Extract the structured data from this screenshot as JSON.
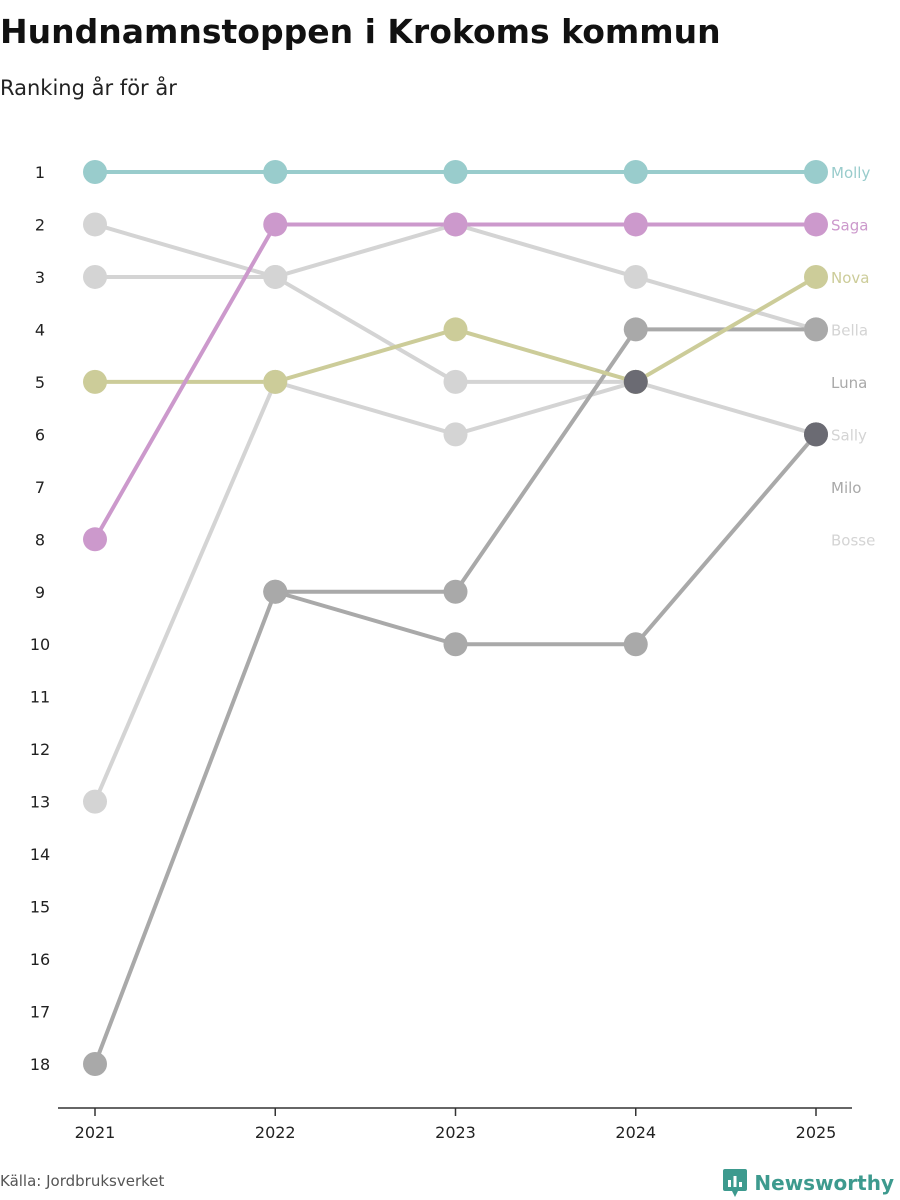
{
  "chart_data": {
    "type": "line",
    "subtype": "bump",
    "title": "Hundnamnstoppen i Krokoms kommun",
    "subtitle": "Ranking år för år",
    "xlabel": "",
    "ylabel": "",
    "x": [
      "2021",
      "2022",
      "2023",
      "2024",
      "2025"
    ],
    "ylim": [
      1,
      18
    ],
    "y_ticks": [
      1,
      2,
      3,
      4,
      5,
      6,
      7,
      8,
      9,
      10,
      11,
      12,
      13,
      14,
      15,
      16,
      17,
      18
    ],
    "y_inverted": true,
    "series": [
      {
        "name": "Bosse",
        "color": "#d4d4d4",
        "values": [
          3,
          3,
          2,
          3,
          4
        ]
      },
      {
        "name": "Sally",
        "color": "#d4d4d4",
        "values": [
          2,
          3,
          5,
          5,
          6
        ]
      },
      {
        "name": "Luna",
        "color": "#d4d4d4",
        "values": [
          13,
          5,
          6,
          5,
          null
        ]
      },
      {
        "name": "Bella",
        "color": "#a9a9a9",
        "values": [
          18,
          9,
          9,
          4,
          4
        ]
      },
      {
        "name": "Milo",
        "color": "#a9a9a9",
        "values": [
          null,
          9,
          10,
          10,
          6
        ]
      },
      {
        "name": "Nova",
        "color": "#cccc99",
        "values": [
          5,
          5,
          4,
          5,
          3
        ]
      },
      {
        "name": "Saga",
        "color": "#cc99cc",
        "values": [
          8,
          2,
          2,
          2,
          2
        ]
      },
      {
        "name": "Molly",
        "color": "#99cccc",
        "values": [
          1,
          1,
          1,
          1,
          1
        ]
      }
    ],
    "labels": [
      {
        "name": "Molly",
        "rank": 1,
        "color": "#99cccc"
      },
      {
        "name": "Saga",
        "rank": 2,
        "color": "#cc99cc"
      },
      {
        "name": "Nova",
        "rank": 3,
        "color": "#cccc99"
      },
      {
        "name": "Bella",
        "rank": 4,
        "color": "#d4d4d4"
      },
      {
        "name": "Luna",
        "rank": 5,
        "color": "#a9a9a9"
      },
      {
        "name": "Sally",
        "rank": 6,
        "color": "#d4d4d4"
      },
      {
        "name": "Milo",
        "rank": 7,
        "color": "#a9a9a9"
      },
      {
        "name": "Bosse",
        "rank": 8,
        "color": "#d4d4d4"
      }
    ],
    "dark_markers": [
      {
        "year": "2024",
        "rank": 5,
        "color": "#6b6b73"
      },
      {
        "year": "2025",
        "rank": 6,
        "color": "#6b6b73"
      }
    ]
  },
  "source": "Källa: Jordbruksverket",
  "brand": {
    "name": "Newsworthy",
    "color": "#3d9a8e"
  }
}
